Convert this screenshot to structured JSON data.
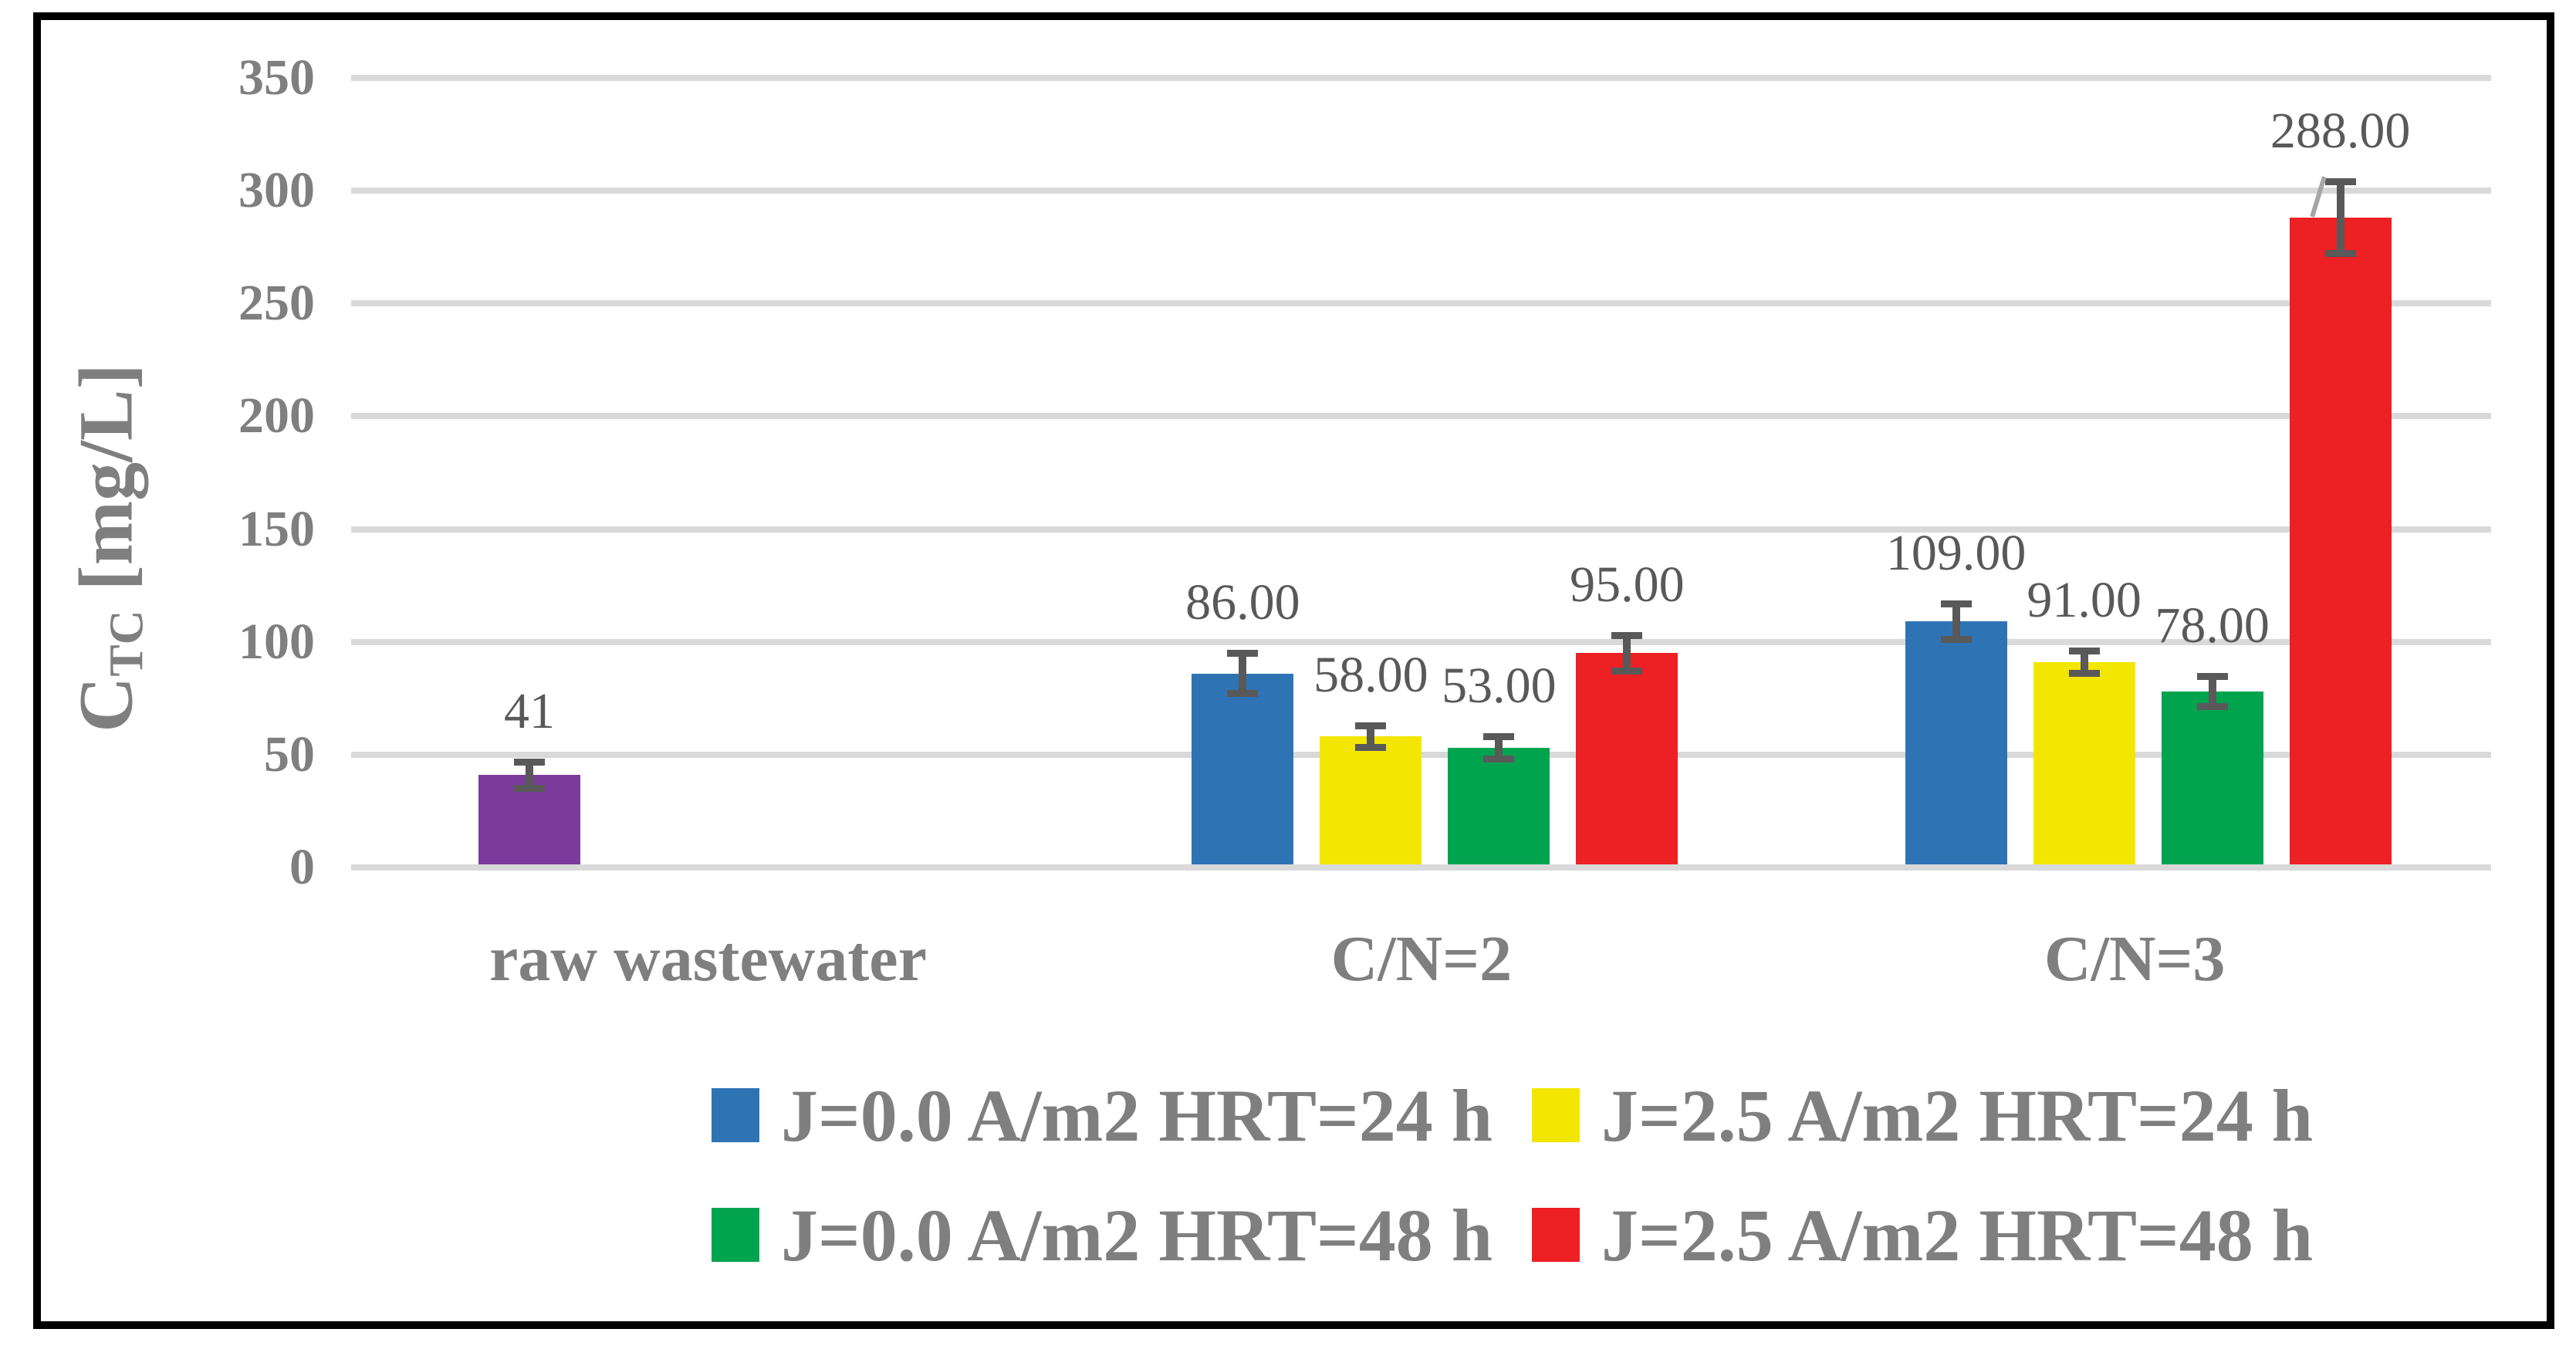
{
  "chart_data": {
    "type": "bar",
    "title": "",
    "ylabel": {
      "symbol": "C",
      "subscript": "TC",
      "unit": "[mg/L]"
    },
    "ylim": [
      0,
      350
    ],
    "ytick_step": 50,
    "yticks": [
      350,
      300,
      250,
      200,
      150,
      100,
      50,
      0
    ],
    "grid": true,
    "legend_position": "bottom-two-rows",
    "categories": [
      "raw wastewater",
      "C/N=2",
      "C/N=3"
    ],
    "series": [
      {
        "name": "J=0.0 A/m2 HRT=24 h",
        "color": "#2E74B5",
        "values": [
          41,
          86,
          109
        ],
        "labels": [
          "41",
          "86.00",
          "109.00"
        ],
        "errors": [
          6,
          9,
          8
        ],
        "point_colors": {
          "0": "#7A3B9A"
        }
      },
      {
        "name": "J=2.5 A/m2 HRT=24 h",
        "color": "#F3E600",
        "values": [
          null,
          58,
          91
        ],
        "labels": [
          "",
          "58.00",
          "91.00"
        ],
        "errors": [
          null,
          5,
          5
        ]
      },
      {
        "name": "J=0.0 A/m2 HRT=48 h",
        "color": "#00A44F",
        "values": [
          null,
          53,
          78
        ],
        "labels": [
          "",
          "53.00",
          "78.00"
        ],
        "errors": [
          null,
          5,
          7
        ]
      },
      {
        "name": "J=2.5 A/m2 HRT=48 h",
        "color": "#ED2024",
        "values": [
          null,
          95,
          288
        ],
        "labels": [
          "",
          "95.00",
          "288.00"
        ],
        "errors": [
          null,
          8,
          16
        ]
      }
    ],
    "annotations": {
      "leader_line_on_label": "288.00"
    }
  },
  "colors": {
    "gridline": "#D9D9D9",
    "axis_text": "#7F7F7F",
    "data_label": "#595959",
    "error_bar": "#595959",
    "frame": "#000000",
    "leader": "#A6A6A6",
    "background": "#FFFFFF"
  }
}
